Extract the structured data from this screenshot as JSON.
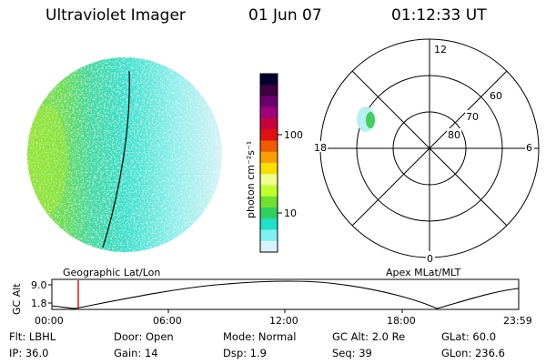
{
  "header": {
    "title": "Ultraviolet Imager",
    "date": "01 Jun 07",
    "time": "01:12:33 UT"
  },
  "geo_panel": {
    "label": "Geographic Lat/Lon"
  },
  "colorbar": {
    "unit_label": "photon cm⁻²s⁻¹",
    "ticks": [
      "100",
      "10"
    ],
    "colors": [
      "#000030",
      "#3d0040",
      "#6a0070",
      "#a0007a",
      "#c8003c",
      "#e01010",
      "#f05a00",
      "#f8a000",
      "#f8e000",
      "#f0ff90",
      "#c0ff30",
      "#70e030",
      "#30d060",
      "#20e0c8",
      "#80f0f0",
      "#d8f4f8"
    ]
  },
  "polar_panel": {
    "label": "Apex MLat/MLT",
    "mlt_labels": {
      "top": "12",
      "bottom": "0",
      "left": "18",
      "right": "6"
    },
    "lat_labels": [
      "60",
      "70",
      "80"
    ]
  },
  "altitude_plot": {
    "ylabel": "GC Alt",
    "yticks": [
      "9.0",
      "1.8"
    ],
    "xticks": [
      "00:00",
      "06:00",
      "12:00",
      "18:00",
      "23:59"
    ],
    "current_time_marker": "01:12"
  },
  "footer": {
    "filter": "Flt: LBHL",
    "ip": "IP: 36.0",
    "door": "Door: Open",
    "gain": "Gain: 14",
    "mode": "Mode: Normal",
    "dsp": "Dsp:   1.9",
    "gc_alt": "GC Alt: 2.0 Re",
    "seq": "Seq: 39",
    "glat": "GLat:  60.0",
    "glon": "GLon: 236.6"
  }
}
